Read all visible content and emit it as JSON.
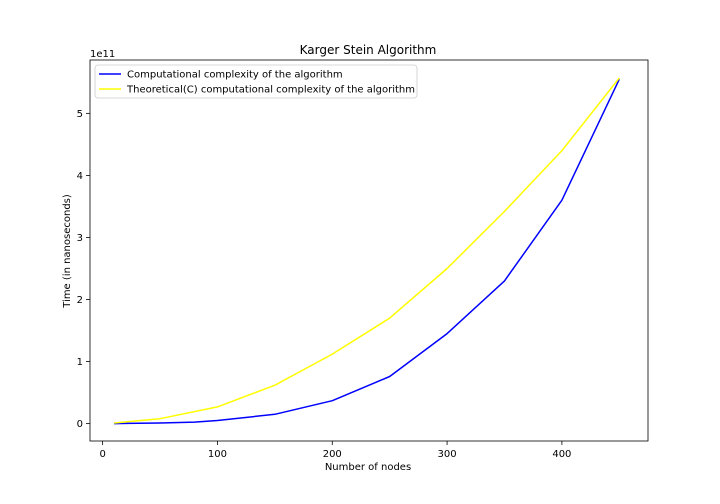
{
  "chart_data": {
    "type": "line",
    "title": "Karger Stein Algorithm",
    "xlabel": "Number of nodes",
    "ylabel": "Time (in nanoseconds)",
    "y_multiplier_label": "1e11",
    "y_scale": 100000000000,
    "xlim": [
      -11,
      475
    ],
    "ylim": [
      -0.28,
      5.86
    ],
    "x_ticks": [
      0,
      100,
      200,
      300,
      400
    ],
    "y_ticks": [
      0,
      1,
      2,
      3,
      4,
      5
    ],
    "grid": false,
    "legend_position": "top-left",
    "series": [
      {
        "name": "Computational complexity of the algorithm",
        "color": "#0000ff",
        "x": [
          10,
          50,
          80,
          100,
          150,
          200,
          250,
          300,
          350,
          400,
          450
        ],
        "y": [
          0.0,
          0.01,
          0.025,
          0.05,
          0.15,
          0.37,
          0.76,
          1.45,
          2.3,
          3.6,
          5.55
        ]
      },
      {
        "name": "Theoretical(C) computational complexity of the algorithm",
        "color": "#ffff00",
        "x": [
          10,
          50,
          100,
          150,
          200,
          250,
          300,
          350,
          400,
          450
        ],
        "y": [
          0.01,
          0.08,
          0.27,
          0.62,
          1.12,
          1.7,
          2.5,
          3.42,
          4.4,
          5.57
        ]
      }
    ]
  }
}
